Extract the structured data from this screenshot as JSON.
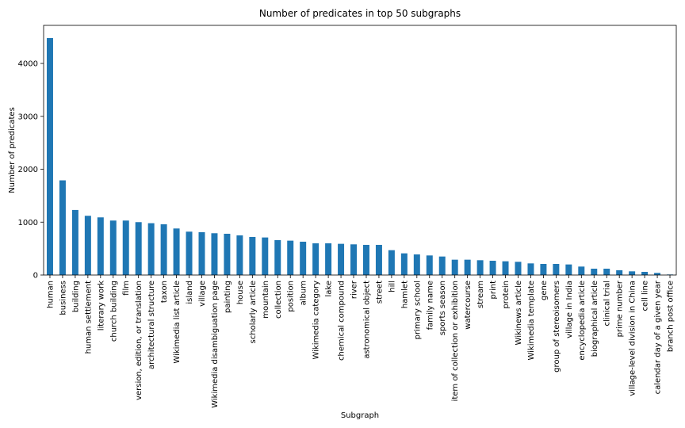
{
  "chart_data": {
    "type": "bar",
    "title": "Number of predicates in top 50 subgraphs",
    "xlabel": "Subgraph",
    "ylabel": "Number of predicates",
    "ylim": [
      0,
      4720
    ],
    "yticks": [
      0,
      1000,
      2000,
      3000,
      4000
    ],
    "grid": false,
    "bar_color": "#1f77b4",
    "categories": [
      "human",
      "business",
      "building",
      "human settlement",
      "literary work",
      "church building",
      "film",
      "version, edition, or translation",
      "architectural structure",
      "taxon",
      "Wikimedia list article",
      "island",
      "village",
      "Wikimedia disambiguation page",
      "painting",
      "house",
      "scholarly article",
      "mountain",
      "collection",
      "position",
      "album",
      "Wikimedia category",
      "lake",
      "chemical compound",
      "river",
      "astronomical object",
      "street",
      "hill",
      "hamlet",
      "primary school",
      "family name",
      "sports season",
      "item of collection or exhibition",
      "watercourse",
      "stream",
      "print",
      "protein",
      "Wikinews article",
      "Wikimedia template",
      "gene",
      "group of stereoisomers",
      "village in India",
      "encyclopedia article",
      "biographical article",
      "clinical trial",
      "prime number",
      "village-level division in China",
      "cell line",
      "calendar day of a given year",
      "branch post office"
    ],
    "values": [
      4480,
      1790,
      1230,
      1120,
      1090,
      1030,
      1030,
      1000,
      980,
      960,
      880,
      820,
      810,
      790,
      780,
      750,
      720,
      710,
      660,
      650,
      630,
      600,
      600,
      590,
      580,
      570,
      570,
      470,
      410,
      390,
      370,
      350,
      290,
      290,
      280,
      270,
      260,
      250,
      220,
      210,
      210,
      200,
      160,
      120,
      120,
      90,
      70,
      60,
      40,
      10
    ]
  }
}
